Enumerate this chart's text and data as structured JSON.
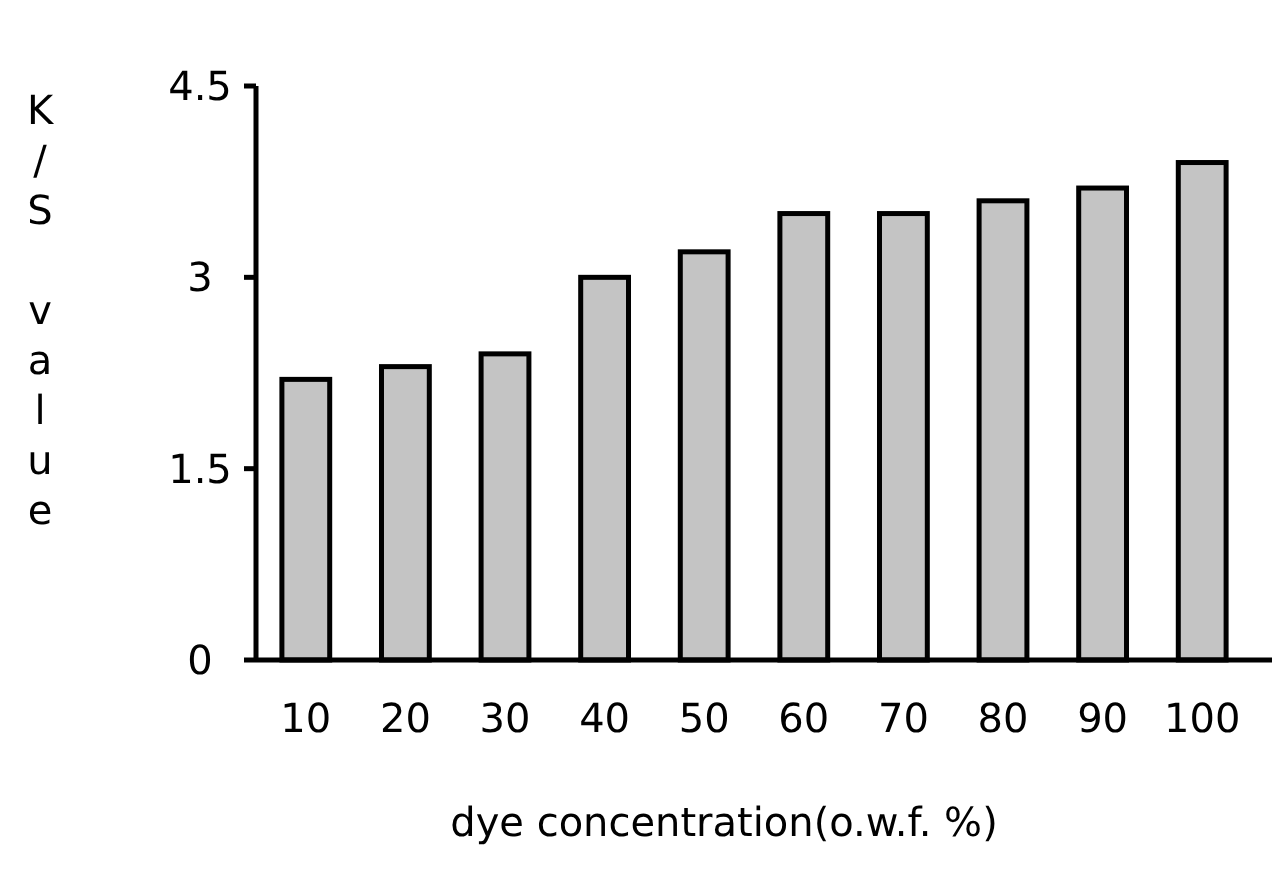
{
  "chart_data": {
    "type": "bar",
    "xlabel": "dye concentration(o.w.f. %)",
    "ylabel": "K/S value",
    "categories": [
      "10",
      "20",
      "30",
      "40",
      "50",
      "60",
      "70",
      "80",
      "90",
      "100"
    ],
    "values": [
      2.2,
      2.3,
      2.4,
      3.0,
      3.2,
      3.5,
      3.5,
      3.6,
      3.7,
      3.9
    ],
    "color": "#c4c4c4",
    "ylim": [
      0,
      4.5
    ],
    "yticks": [
      0,
      1.5,
      3,
      4.5
    ],
    "grid": false
  }
}
